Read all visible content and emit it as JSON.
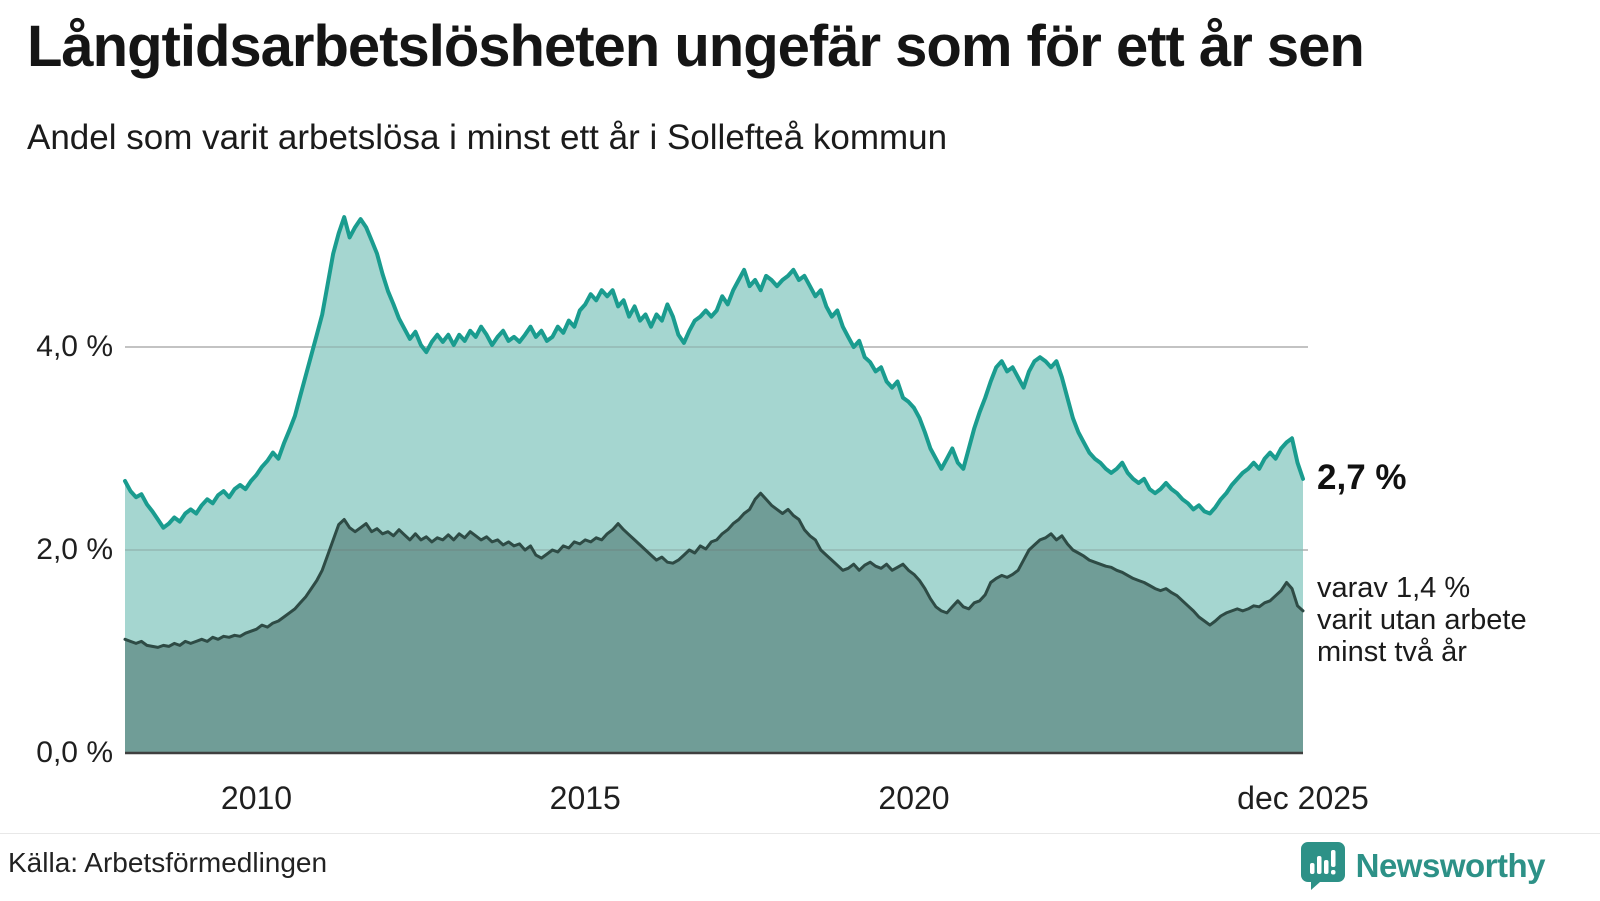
{
  "header": {
    "title": "Långtidsarbetslösheten ungefär som för ett år sen",
    "subtitle": "Andel som varit arbetslösa i minst ett år i Sollefteå kommun"
  },
  "annotations": {
    "total_value_label": "2,7 %",
    "sub_lines": [
      "varav 1,4 %",
      "varit utan arbete",
      "minst två år"
    ]
  },
  "footer": {
    "source": "Källa: Arbetsförmedlingen",
    "brand_name": "Newsworthy"
  },
  "colors": {
    "total_line": "#1a9c8f",
    "total_fill": "#a5d6d0",
    "two_year_line": "#2e4b45",
    "two_year_fill": "#709d97",
    "gridline": "#dcdcdc",
    "gridline_overlay": "rgba(110,110,110,0.22)",
    "baseline": "#3f3f3f",
    "brand_teal": "#2d9187"
  },
  "chart_data": {
    "type": "area",
    "title": "Andel som varit arbetslösa i minst ett år i Sollefteå kommun",
    "unit": "%",
    "frequency": "monthly",
    "x_start": "2008-01",
    "x_end": "2025-12",
    "ylim": [
      0,
      5.5
    ],
    "grid": "horizontal",
    "y_ticks": [
      {
        "label": "0,0 %",
        "value": 0.0
      },
      {
        "label": "2,0 %",
        "value": 2.0
      },
      {
        "label": "4,0 %",
        "value": 4.0
      }
    ],
    "x_ticks": [
      {
        "label": "2010",
        "month_index": 24
      },
      {
        "label": "2015",
        "month_index": 84
      },
      {
        "label": "2020",
        "month_index": 144
      },
      {
        "label": "dec 2025",
        "month_index": 215
      }
    ],
    "end_values": {
      "minst_ett_ar": "2,7 %",
      "minst_tva_ar": "1,4 %"
    },
    "series": [
      {
        "name": "Arbetslösa minst ett år",
        "values": [
          2.68,
          2.58,
          2.52,
          2.55,
          2.45,
          2.38,
          2.3,
          2.22,
          2.26,
          2.32,
          2.28,
          2.36,
          2.4,
          2.36,
          2.44,
          2.5,
          2.46,
          2.54,
          2.58,
          2.52,
          2.6,
          2.64,
          2.6,
          2.68,
          2.74,
          2.82,
          2.88,
          2.96,
          2.9,
          3.05,
          3.18,
          3.32,
          3.52,
          3.72,
          3.92,
          4.12,
          4.32,
          4.62,
          4.92,
          5.12,
          5.28,
          5.08,
          5.18,
          5.26,
          5.18,
          5.05,
          4.92,
          4.72,
          4.55,
          4.42,
          4.28,
          4.18,
          4.08,
          4.15,
          4.02,
          3.95,
          4.05,
          4.12,
          4.05,
          4.12,
          4.02,
          4.12,
          4.06,
          4.16,
          4.1,
          4.2,
          4.12,
          4.02,
          4.1,
          4.16,
          4.06,
          4.1,
          4.05,
          4.12,
          4.2,
          4.1,
          4.16,
          4.06,
          4.1,
          4.2,
          4.14,
          4.26,
          4.2,
          4.36,
          4.42,
          4.52,
          4.46,
          4.56,
          4.5,
          4.56,
          4.4,
          4.46,
          4.3,
          4.4,
          4.26,
          4.32,
          4.2,
          4.32,
          4.26,
          4.42,
          4.3,
          4.12,
          4.04,
          4.16,
          4.26,
          4.3,
          4.36,
          4.3,
          4.36,
          4.5,
          4.42,
          4.56,
          4.66,
          4.76,
          4.6,
          4.66,
          4.56,
          4.7,
          4.66,
          4.6,
          4.66,
          4.7,
          4.76,
          4.66,
          4.7,
          4.6,
          4.5,
          4.56,
          4.4,
          4.3,
          4.36,
          4.2,
          4.1,
          4.0,
          4.06,
          3.9,
          3.85,
          3.76,
          3.8,
          3.66,
          3.6,
          3.66,
          3.5,
          3.46,
          3.4,
          3.3,
          3.16,
          3.0,
          2.9,
          2.8,
          2.9,
          3.0,
          2.86,
          2.8,
          3.0,
          3.2,
          3.36,
          3.5,
          3.66,
          3.8,
          3.86,
          3.76,
          3.8,
          3.7,
          3.6,
          3.76,
          3.86,
          3.9,
          3.86,
          3.8,
          3.86,
          3.7,
          3.5,
          3.3,
          3.16,
          3.06,
          2.96,
          2.9,
          2.86,
          2.8,
          2.76,
          2.8,
          2.86,
          2.76,
          2.7,
          2.66,
          2.7,
          2.6,
          2.56,
          2.6,
          2.66,
          2.6,
          2.56,
          2.5,
          2.46,
          2.4,
          2.44,
          2.38,
          2.36,
          2.42,
          2.5,
          2.56,
          2.64,
          2.7,
          2.76,
          2.8,
          2.86,
          2.8,
          2.9,
          2.96,
          2.9,
          3.0,
          3.06,
          3.1,
          2.86,
          2.7
        ]
      },
      {
        "name": "Arbetslösa minst två år",
        "values": [
          1.12,
          1.1,
          1.08,
          1.1,
          1.06,
          1.05,
          1.04,
          1.06,
          1.05,
          1.08,
          1.06,
          1.1,
          1.08,
          1.1,
          1.12,
          1.1,
          1.14,
          1.12,
          1.15,
          1.14,
          1.16,
          1.15,
          1.18,
          1.2,
          1.22,
          1.26,
          1.24,
          1.28,
          1.3,
          1.34,
          1.38,
          1.42,
          1.48,
          1.54,
          1.62,
          1.7,
          1.8,
          1.95,
          2.1,
          2.25,
          2.3,
          2.22,
          2.18,
          2.22,
          2.26,
          2.18,
          2.21,
          2.16,
          2.18,
          2.14,
          2.2,
          2.15,
          2.1,
          2.16,
          2.1,
          2.13,
          2.08,
          2.12,
          2.1,
          2.15,
          2.1,
          2.16,
          2.12,
          2.18,
          2.14,
          2.1,
          2.13,
          2.08,
          2.1,
          2.05,
          2.08,
          2.04,
          2.06,
          2.0,
          2.04,
          1.95,
          1.92,
          1.96,
          2.0,
          1.98,
          2.04,
          2.02,
          2.08,
          2.06,
          2.1,
          2.08,
          2.12,
          2.1,
          2.16,
          2.2,
          2.26,
          2.2,
          2.15,
          2.1,
          2.05,
          2.0,
          1.95,
          1.9,
          1.93,
          1.88,
          1.87,
          1.9,
          1.95,
          2.0,
          1.97,
          2.04,
          2.01,
          2.08,
          2.1,
          2.16,
          2.2,
          2.26,
          2.3,
          2.36,
          2.4,
          2.5,
          2.56,
          2.5,
          2.44,
          2.4,
          2.36,
          2.4,
          2.34,
          2.3,
          2.2,
          2.14,
          2.1,
          2.0,
          1.95,
          1.9,
          1.85,
          1.8,
          1.82,
          1.86,
          1.8,
          1.85,
          1.88,
          1.84,
          1.82,
          1.86,
          1.8,
          1.83,
          1.86,
          1.8,
          1.76,
          1.7,
          1.62,
          1.52,
          1.44,
          1.4,
          1.38,
          1.44,
          1.5,
          1.44,
          1.42,
          1.48,
          1.5,
          1.56,
          1.68,
          1.72,
          1.75,
          1.73,
          1.76,
          1.8,
          1.9,
          2.0,
          2.05,
          2.1,
          2.12,
          2.16,
          2.1,
          2.14,
          2.06,
          2.0,
          1.97,
          1.94,
          1.9,
          1.88,
          1.86,
          1.84,
          1.83,
          1.8,
          1.78,
          1.75,
          1.72,
          1.7,
          1.68,
          1.65,
          1.62,
          1.6,
          1.62,
          1.58,
          1.55,
          1.5,
          1.45,
          1.4,
          1.34,
          1.3,
          1.26,
          1.3,
          1.35,
          1.38,
          1.4,
          1.42,
          1.4,
          1.42,
          1.45,
          1.44,
          1.48,
          1.5,
          1.55,
          1.6,
          1.68,
          1.62,
          1.45,
          1.4
        ]
      }
    ]
  }
}
